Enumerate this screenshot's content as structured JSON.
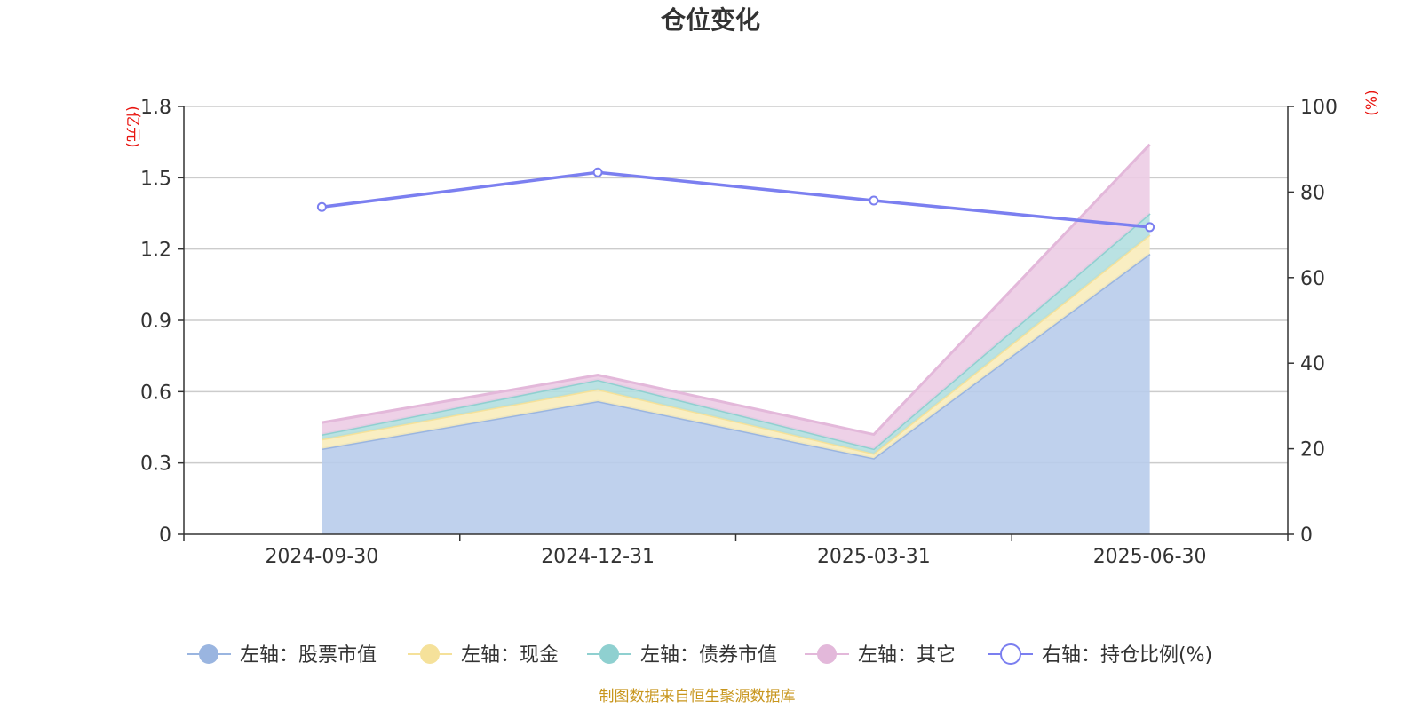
{
  "chart_data": {
    "type": "area",
    "title": "仓位变化",
    "categories": [
      "2024-09-30",
      "2024-12-31",
      "2025-03-31",
      "2025-06-30"
    ],
    "left_axis": {
      "unit": "(亿元)",
      "ylim": [
        0,
        1.8
      ],
      "ticks": [
        "0",
        "0.3",
        "0.6",
        "0.9",
        "1.2",
        "1.5",
        "1.8"
      ]
    },
    "right_axis": {
      "unit": "(%)",
      "ylim": [
        0,
        100
      ],
      "ticks": [
        "0",
        "20",
        "40",
        "60",
        "80",
        "100"
      ]
    },
    "stacked_series": [
      {
        "name": "左轴：股票市值",
        "color": "#9ab5e0",
        "fill": "#b8cceb",
        "values": [
          0.36,
          0.56,
          0.32,
          1.18
        ]
      },
      {
        "name": "左轴：现金",
        "color": "#f5e19a",
        "fill": "#f8ecbb",
        "values": [
          0.04,
          0.05,
          0.02,
          0.08
        ]
      },
      {
        "name": "左轴：债券市值",
        "color": "#8fd0d0",
        "fill": "#b2dfe0",
        "values": [
          0.02,
          0.04,
          0.02,
          0.09
        ]
      },
      {
        "name": "左轴：其它",
        "color": "#e3b8da",
        "fill": "#ecccE4",
        "values": [
          0.05,
          0.02,
          0.06,
          0.29
        ]
      }
    ],
    "line_series": {
      "name": "右轴：持仓比例(%)",
      "color": "#7b7ff0",
      "axis": "right",
      "values": [
        76.5,
        84.6,
        78.0,
        71.8
      ]
    },
    "grid": true,
    "legend_position": "bottom"
  },
  "source_note": "制图数据来自恒生聚源数据库"
}
